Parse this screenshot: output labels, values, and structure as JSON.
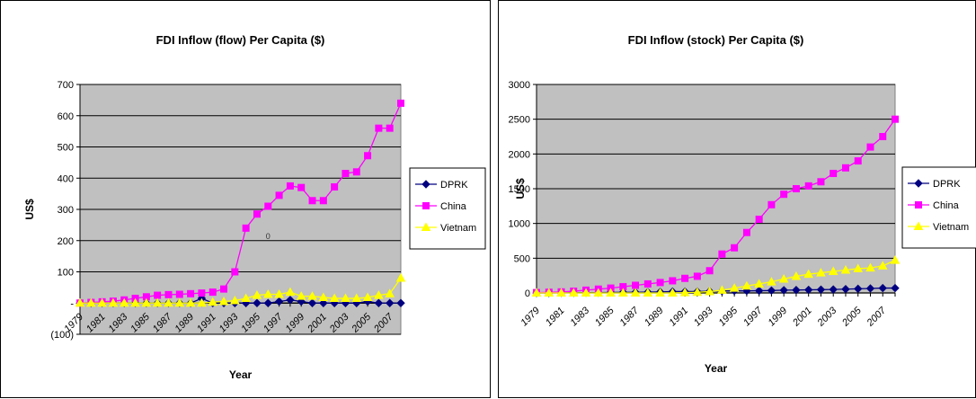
{
  "chart_data": [
    {
      "type": "line",
      "title": "FDI Inflow (flow) Per Capita ($)",
      "xlabel": "Year",
      "ylabel": "US$",
      "ylim": [
        -100,
        700
      ],
      "yticks": [
        -100,
        0,
        100,
        200,
        300,
        400,
        500,
        600,
        700
      ],
      "ytick_labels": [
        "(100)",
        "-",
        "100",
        "200",
        "300",
        "400",
        "500",
        "600",
        "700"
      ],
      "x": [
        1979,
        1980,
        1981,
        1982,
        1983,
        1984,
        1985,
        1986,
        1987,
        1988,
        1989,
        1990,
        1991,
        1992,
        1993,
        1994,
        1995,
        1996,
        1997,
        1998,
        1999,
        2000,
        2001,
        2002,
        2003,
        2004,
        2005,
        2006,
        2007,
        2008
      ],
      "xtick_labels": [
        "1979",
        "1981",
        "1983",
        "1985",
        "1987",
        "1989",
        "1991",
        "1993",
        "1995",
        "1997",
        "1999",
        "2001",
        "2003",
        "2005",
        "2007"
      ],
      "grid": true,
      "legend": "right",
      "annotations": [
        {
          "text": "0",
          "x": 1996,
          "y": 205
        }
      ],
      "series": [
        {
          "name": "DPRK",
          "color": "#000080",
          "marker": "diamond",
          "values": [
            0,
            0,
            0,
            0,
            0,
            0,
            0,
            0,
            0,
            0,
            0,
            15,
            0,
            0,
            0,
            0,
            0,
            0,
            5,
            10,
            5,
            0,
            0,
            0,
            0,
            0,
            5,
            0,
            0,
            0
          ]
        },
        {
          "name": "China",
          "color": "#ff00ff",
          "marker": "square",
          "values": [
            0,
            2,
            4,
            6,
            10,
            15,
            20,
            25,
            27,
            28,
            30,
            32,
            35,
            45,
            100,
            240,
            285,
            310,
            345,
            375,
            370,
            328,
            328,
            372,
            415,
            420,
            472,
            560,
            560,
            640
          ]
        },
        {
          "name": "Vietnam",
          "color": "#ffff00",
          "marker": "triangle",
          "values": [
            0,
            0,
            0,
            0,
            0,
            0,
            0,
            0,
            0,
            0,
            0,
            0,
            3,
            5,
            8,
            15,
            25,
            28,
            28,
            35,
            22,
            22,
            18,
            15,
            15,
            15,
            18,
            25,
            30,
            80
          ]
        }
      ]
    },
    {
      "type": "line",
      "title": "FDI Inflow (stock) Per Capita ($)",
      "xlabel": "Year",
      "ylabel": "US$",
      "ylim": [
        0,
        3000
      ],
      "yticks": [
        0,
        500,
        1000,
        1500,
        2000,
        2500,
        3000
      ],
      "ytick_labels": [
        "0",
        "500",
        "1000",
        "1500",
        "2000",
        "2500",
        "3000"
      ],
      "x": [
        1979,
        1980,
        1981,
        1982,
        1983,
        1984,
        1985,
        1986,
        1987,
        1988,
        1989,
        1990,
        1991,
        1992,
        1993,
        1994,
        1995,
        1996,
        1997,
        1998,
        1999,
        2000,
        2001,
        2002,
        2003,
        2004,
        2005,
        2006,
        2007,
        2008
      ],
      "xtick_labels": [
        "1979",
        "1981",
        "1983",
        "1985",
        "1987",
        "1989",
        "1991",
        "1993",
        "1995",
        "1997",
        "1999",
        "2001",
        "2003",
        "2005",
        "2007"
      ],
      "grid": true,
      "legend": "right",
      "series": [
        {
          "name": "DPRK",
          "color": "#000080",
          "marker": "diamond",
          "values": [
            0,
            0,
            2,
            3,
            5,
            5,
            8,
            10,
            10,
            12,
            15,
            20,
            20,
            20,
            25,
            28,
            30,
            30,
            32,
            35,
            40,
            42,
            45,
            48,
            50,
            55,
            60,
            65,
            70,
            70
          ]
        },
        {
          "name": "China",
          "color": "#ff00ff",
          "marker": "square",
          "values": [
            5,
            10,
            15,
            25,
            40,
            55,
            70,
            90,
            110,
            130,
            150,
            175,
            210,
            240,
            320,
            560,
            650,
            870,
            1060,
            1270,
            1420,
            1500,
            1540,
            1600,
            1720,
            1800,
            1900,
            2100,
            2250,
            2500
          ]
        },
        {
          "name": "Vietnam",
          "color": "#ffff00",
          "marker": "triangle",
          "values": [
            0,
            0,
            0,
            0,
            0,
            0,
            0,
            0,
            0,
            0,
            0,
            0,
            5,
            10,
            20,
            40,
            70,
            100,
            130,
            160,
            200,
            240,
            270,
            290,
            310,
            330,
            350,
            360,
            390,
            470
          ]
        }
      ]
    }
  ]
}
